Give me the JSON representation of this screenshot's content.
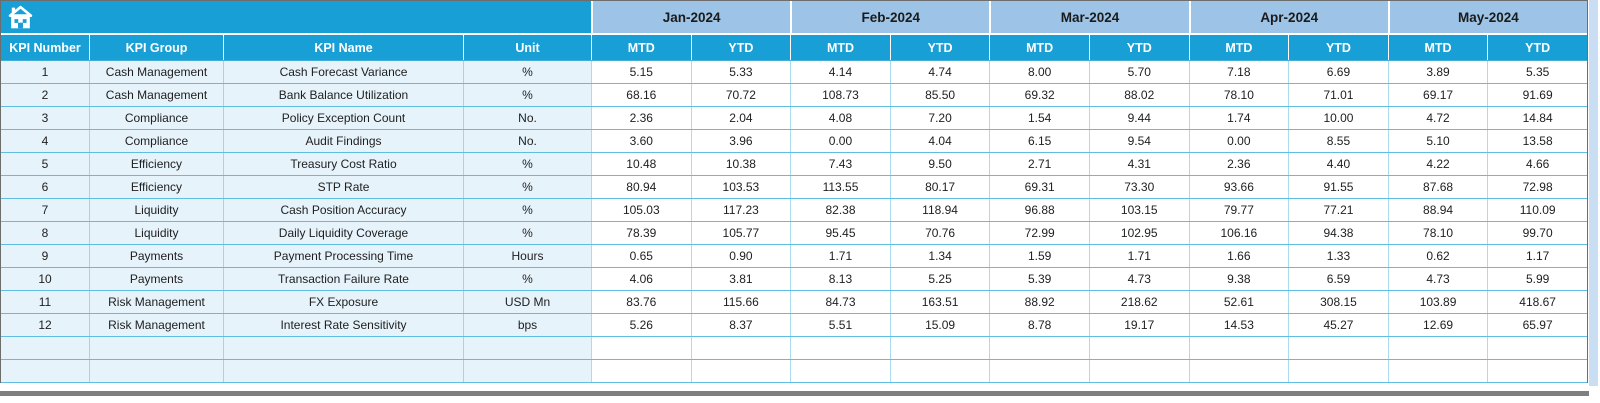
{
  "colors": {
    "header_cyan": "#189fd5",
    "month_band_blue": "#9dc3e6",
    "row_tint": "#e6f3fa",
    "grid_line": "#5ebde0",
    "right_strip": "#c9def2",
    "bottom_bar_gray": "#7f7f7f"
  },
  "table": {
    "corner_icon": "home-icon",
    "column_headers": [
      "KPI Number",
      "KPI Group",
      "KPI Name",
      "Unit"
    ],
    "months": [
      "Jan-2024",
      "Feb-2024",
      "Mar-2024",
      "Apr-2024",
      "May-2024"
    ],
    "period_headers": [
      "MTD",
      "YTD"
    ],
    "empty_row_count": 2,
    "rows": [
      {
        "number": "1",
        "group": "Cash Management",
        "name": "Cash Forecast Variance",
        "unit": "%",
        "values": [
          "5.15",
          "5.33",
          "4.14",
          "4.74",
          "8.00",
          "5.70",
          "7.18",
          "6.69",
          "3.89",
          "5.35"
        ]
      },
      {
        "number": "2",
        "group": "Cash Management",
        "name": "Bank Balance Utilization",
        "unit": "%",
        "values": [
          "68.16",
          "70.72",
          "108.73",
          "85.50",
          "69.32",
          "88.02",
          "78.10",
          "71.01",
          "69.17",
          "91.69"
        ]
      },
      {
        "number": "3",
        "group": "Compliance",
        "name": "Policy Exception Count",
        "unit": "No.",
        "values": [
          "2.36",
          "2.04",
          "4.08",
          "7.20",
          "1.54",
          "9.44",
          "1.74",
          "10.00",
          "4.72",
          "14.84"
        ]
      },
      {
        "number": "4",
        "group": "Compliance",
        "name": "Audit Findings",
        "unit": "No.",
        "values": [
          "3.60",
          "3.96",
          "0.00",
          "4.04",
          "6.15",
          "9.54",
          "0.00",
          "8.55",
          "5.10",
          "13.58"
        ]
      },
      {
        "number": "5",
        "group": "Efficiency",
        "name": "Treasury Cost Ratio",
        "unit": "%",
        "values": [
          "10.48",
          "10.38",
          "7.43",
          "9.50",
          "2.71",
          "4.31",
          "2.36",
          "4.40",
          "4.22",
          "4.66"
        ]
      },
      {
        "number": "6",
        "group": "Efficiency",
        "name": "STP Rate",
        "unit": "%",
        "values": [
          "80.94",
          "103.53",
          "113.55",
          "80.17",
          "69.31",
          "73.30",
          "93.66",
          "91.55",
          "87.68",
          "72.98"
        ]
      },
      {
        "number": "7",
        "group": "Liquidity",
        "name": "Cash Position Accuracy",
        "unit": "%",
        "values": [
          "105.03",
          "117.23",
          "82.38",
          "118.94",
          "96.88",
          "103.15",
          "79.77",
          "77.21",
          "88.94",
          "110.09"
        ]
      },
      {
        "number": "8",
        "group": "Liquidity",
        "name": "Daily Liquidity Coverage",
        "unit": "%",
        "values": [
          "78.39",
          "105.77",
          "95.45",
          "70.76",
          "72.99",
          "102.95",
          "106.16",
          "94.38",
          "78.10",
          "99.70"
        ]
      },
      {
        "number": "9",
        "group": "Payments",
        "name": "Payment Processing Time",
        "unit": "Hours",
        "values": [
          "0.65",
          "0.90",
          "1.71",
          "1.34",
          "1.59",
          "1.71",
          "1.66",
          "1.33",
          "0.62",
          "1.17"
        ]
      },
      {
        "number": "10",
        "group": "Payments",
        "name": "Transaction Failure Rate",
        "unit": "%",
        "values": [
          "4.06",
          "3.81",
          "8.13",
          "5.25",
          "5.39",
          "4.73",
          "9.38",
          "6.59",
          "4.73",
          "5.99"
        ]
      },
      {
        "number": "11",
        "group": "Risk Management",
        "name": "FX Exposure",
        "unit": "USD Mn",
        "values": [
          "83.76",
          "115.66",
          "84.73",
          "163.51",
          "88.92",
          "218.62",
          "52.61",
          "308.15",
          "103.89",
          "418.67"
        ]
      },
      {
        "number": "12",
        "group": "Risk Management",
        "name": "Interest Rate Sensitivity",
        "unit": "bps",
        "values": [
          "5.26",
          "8.37",
          "5.51",
          "15.09",
          "8.78",
          "19.17",
          "14.53",
          "45.27",
          "12.69",
          "65.97"
        ]
      }
    ]
  }
}
